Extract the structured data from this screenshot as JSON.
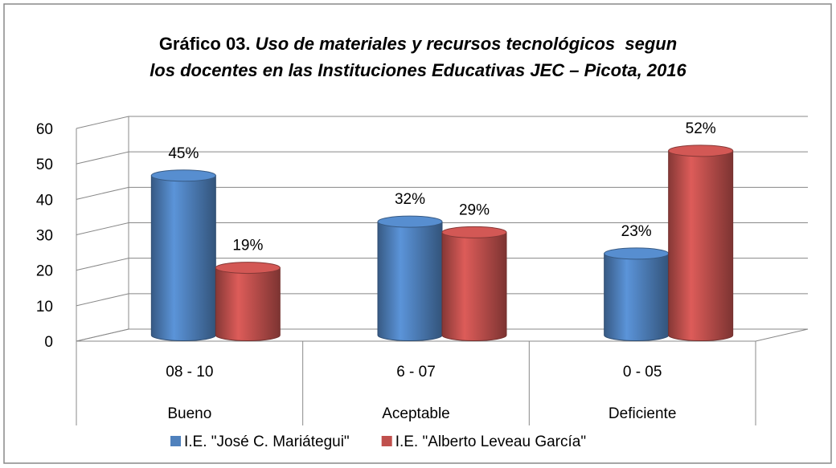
{
  "chart_data": {
    "type": "bar3d",
    "title_number": "Gráfico 03.",
    "title": "Uso de materiales y recursos tecnológicos  segun los docentes en las Instituciones Educativas JEC – Picota, 2016",
    "categories": [
      "08 - 10",
      "6 - 07",
      "0 - 05"
    ],
    "groups": [
      "Bueno",
      "Aceptable",
      "Deficiente"
    ],
    "series": [
      {
        "name": "I.E. \"José C. Mariátegui\"",
        "color": "#4f81bd",
        "values": [
          45,
          32,
          23
        ],
        "value_labels": [
          "45%",
          "32%",
          "23%"
        ]
      },
      {
        "name": "I.E. \"Alberto Leveau García\"",
        "color": "#c0504d",
        "values": [
          19,
          29,
          52
        ],
        "value_labels": [
          "19%",
          "29%",
          "52%"
        ]
      }
    ],
    "ylim": [
      0,
      60
    ],
    "yticks": [
      0,
      10,
      20,
      30,
      40,
      50,
      60
    ],
    "grid": true,
    "legend": "bottom"
  }
}
